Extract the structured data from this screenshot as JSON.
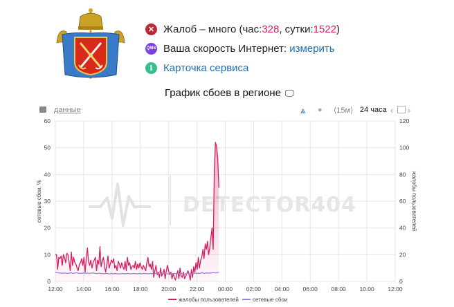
{
  "header": {
    "logo": "saint-petersburg-coat-of-arms",
    "status": {
      "prefix": "Жалоб – много (час: ",
      "hour_value": "328",
      "mid": ", сутки: ",
      "day_value": "1522",
      "suffix": ")"
    },
    "speed": {
      "text": "Ваша скорость Интернет: ",
      "link": "измерить",
      "icon_text": "QMS"
    },
    "service_card": "Карточка сервиса"
  },
  "chart_title": "График сбоев в регионе",
  "toolbar": {
    "data_link": "данные",
    "interval": "⟨15м⟩",
    "range": "24 часа",
    "prev": "‹",
    "next": "›"
  },
  "colors": {
    "complaints": "#d81b60",
    "outages": "#9a7fe0",
    "accent": "#1f6fb2"
  },
  "chart_data": {
    "type": "line",
    "watermark": "DETECTOR404",
    "x_ticks": [
      "12:00",
      "14:00",
      "16:00",
      "18:00",
      "20:00",
      "22:00",
      "00:00",
      "02:00",
      "04:00",
      "06:00",
      "08:00",
      "10:00",
      "12:00"
    ],
    "y_left": {
      "label": "сетевые сбои, %",
      "range": [
        0,
        60
      ],
      "ticks": [
        "0",
        "10",
        "20",
        "30",
        "40",
        "50",
        "60"
      ]
    },
    "y_right": {
      "label": "жалобы пользователей",
      "range": [
        0,
        120
      ],
      "ticks": [
        "0",
        "20",
        "40",
        "60",
        "80",
        "100",
        "120"
      ]
    },
    "grid": true,
    "legend_position": "bottom",
    "series": [
      {
        "name": "жалобы пользователей",
        "axis": "right",
        "type": "area",
        "values": [
          20,
          20,
          9,
          18,
          17,
          19,
          12,
          20,
          18,
          14,
          21,
          20,
          15,
          8,
          22,
          12,
          18,
          14,
          13,
          10,
          8,
          13,
          14,
          17,
          12,
          18,
          7,
          17,
          25,
          15,
          12,
          16,
          10,
          14,
          16,
          18,
          8,
          16,
          13,
          26,
          11,
          15,
          18,
          11,
          7,
          13,
          19,
          10,
          13,
          16,
          14,
          17,
          10,
          12,
          8,
          15,
          13,
          10,
          14,
          11,
          9,
          15,
          8,
          18,
          12,
          14,
          9,
          11,
          12,
          10,
          15,
          9,
          13,
          10,
          14,
          11,
          9,
          12,
          10,
          8,
          14,
          18,
          11,
          13,
          9,
          15,
          3,
          8,
          12,
          5,
          7,
          3,
          10,
          4,
          6,
          9,
          2,
          8,
          12,
          8,
          5,
          7,
          2,
          6,
          3,
          1,
          5,
          8,
          2,
          10,
          4,
          3,
          7,
          2,
          4,
          6,
          8,
          5,
          1,
          9,
          3,
          11,
          7,
          14,
          9,
          18,
          10,
          16,
          18,
          24,
          17,
          28,
          24,
          30,
          20,
          25,
          33,
          40,
          24,
          84,
          104,
          101,
          92,
          70
        ]
      },
      {
        "name": "сетевые сбои",
        "axis": "left",
        "type": "line",
        "values": [
          3.2,
          3.4,
          3.3,
          3.1,
          3.2,
          3.0,
          3.1,
          3.0,
          3.2,
          3.1,
          3.0,
          3.1,
          3.0,
          3.1,
          3.2,
          3.1,
          3.0,
          3.1,
          3.2,
          3.2,
          3.1,
          3.0,
          3.1,
          3.0,
          3.1,
          3.2,
          3.1,
          3.0,
          3.1,
          3.1,
          3.0,
          3.0,
          3.1,
          3.2,
          3.1,
          3.0,
          3.0,
          2.9,
          3.0,
          3.1,
          3.0,
          2.9,
          3.0,
          2.8,
          2.9,
          3.0,
          3.0,
          2.9,
          2.8,
          2.9,
          3.0,
          2.9,
          2.8,
          3.0,
          2.9,
          2.9,
          2.8,
          2.8,
          2.9,
          2.8,
          3.0,
          2.9,
          2.8,
          2.9,
          2.9,
          3.0,
          2.9,
          2.8,
          2.9,
          2.9,
          3.0,
          2.9,
          2.9,
          2.8,
          2.9,
          3.0,
          2.9,
          2.8,
          2.9,
          3.0,
          2.9,
          3.0,
          2.9,
          2.8,
          2.9,
          3.0,
          2.9,
          2.9,
          2.8,
          2.9,
          3.0,
          3.0,
          2.9,
          2.8,
          2.9,
          3.0,
          2.9,
          2.9,
          3.0,
          2.9,
          2.8,
          2.9,
          3.0,
          2.9,
          2.9,
          2.8,
          2.9,
          3.0,
          2.9,
          3.0,
          2.9,
          2.8,
          2.9,
          3.0,
          2.9,
          2.9,
          2.8,
          2.9,
          3.0,
          3.0,
          2.9,
          2.8,
          2.9,
          3.0,
          3.1,
          3.0,
          3.1,
          3.0,
          3.1,
          3.0,
          3.1,
          3.2,
          3.1,
          3.0,
          3.1,
          3.2,
          3.1,
          3.1,
          3.2,
          3.1,
          3.2,
          3.3,
          3.2,
          3.2,
          3.3,
          3.4,
          3.3
        ]
      }
    ]
  }
}
